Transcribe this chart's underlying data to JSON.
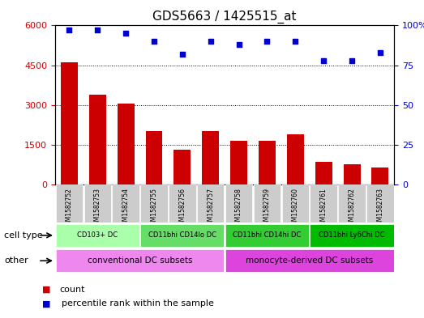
{
  "title": "GDS5663 / 1425515_at",
  "samples": [
    "GSM1582752",
    "GSM1582753",
    "GSM1582754",
    "GSM1582755",
    "GSM1582756",
    "GSM1582757",
    "GSM1582758",
    "GSM1582759",
    "GSM1582760",
    "GSM1582761",
    "GSM1582762",
    "GSM1582763"
  ],
  "counts": [
    4600,
    3400,
    3050,
    2000,
    1300,
    2000,
    1650,
    1650,
    1900,
    850,
    750,
    650
  ],
  "percentiles": [
    97,
    97,
    95,
    90,
    82,
    90,
    88,
    90,
    90,
    78,
    78,
    83
  ],
  "ylim_left": [
    0,
    6000
  ],
  "ylim_right": [
    0,
    100
  ],
  "yticks_left": [
    0,
    1500,
    3000,
    4500,
    6000
  ],
  "yticks_right": [
    0,
    25,
    50,
    75,
    100
  ],
  "bar_color": "#cc0000",
  "dot_color": "#0000cc",
  "cell_type_groups": [
    {
      "label": "CD103+ DC",
      "start": 0,
      "end": 2,
      "color": "#aaffaa"
    },
    {
      "label": "CD11bhi CD14lo DC",
      "start": 3,
      "end": 5,
      "color": "#66dd66"
    },
    {
      "label": "CD11bhi CD14hi DC",
      "start": 6,
      "end": 8,
      "color": "#33cc33"
    },
    {
      "label": "CD11bhi Ly6Chi DC",
      "start": 9,
      "end": 11,
      "color": "#00bb00"
    }
  ],
  "other_groups": [
    {
      "label": "conventional DC subsets",
      "start": 0,
      "end": 5,
      "color": "#ee88ee"
    },
    {
      "label": "monocyte-derived DC subsets",
      "start": 6,
      "end": 11,
      "color": "#dd44dd"
    }
  ],
  "cell_type_label": "cell type",
  "other_label": "other",
  "legend_count": "count",
  "legend_percentile": "percentile rank within the sample",
  "bg_color": "#ffffff",
  "sample_bg_color": "#cccccc"
}
